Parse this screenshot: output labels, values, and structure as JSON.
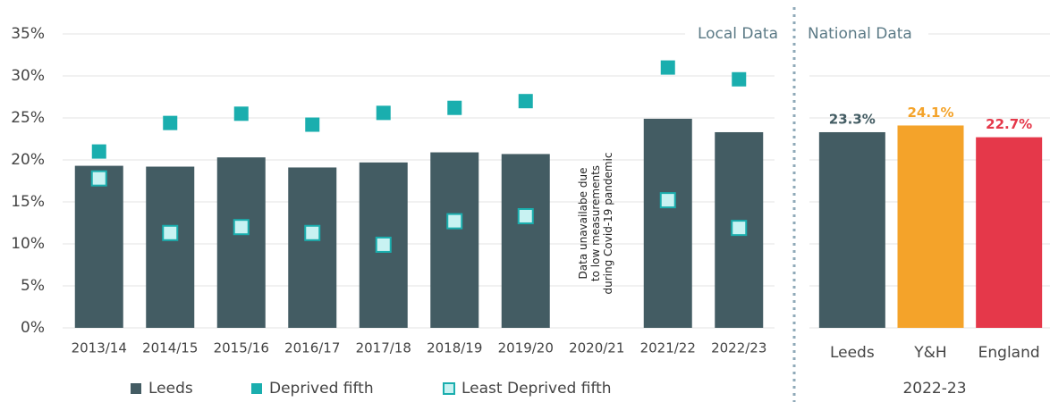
{
  "chart_data": [
    {
      "type": "bar",
      "title": "Local Data",
      "categories": [
        "2013/14",
        "2014/15",
        "2015/16",
        "2016/17",
        "2017/18",
        "2018/19",
        "2019/20",
        "2020/21",
        "2021/22",
        "2022/23"
      ],
      "series": [
        {
          "name": "Leeds",
          "mark": "bar",
          "color": "#435c63",
          "values": [
            19.3,
            19.2,
            20.3,
            19.1,
            19.7,
            20.9,
            20.7,
            null,
            24.9,
            23.3
          ]
        },
        {
          "name": "Deprived fifth",
          "mark": "square",
          "color": "#1aaeae",
          "values": [
            21.0,
            24.4,
            25.5,
            24.2,
            25.6,
            26.2,
            27.0,
            null,
            31.0,
            29.6
          ]
        },
        {
          "name": "Least Deprived fifth",
          "mark": "hollow-square",
          "color": "#1aaeae",
          "values": [
            17.8,
            11.3,
            12.0,
            11.3,
            9.9,
            12.7,
            13.3,
            null,
            15.2,
            11.9
          ]
        }
      ],
      "annotation": [
        "Data unavailabe due",
        "to low measurements",
        "during Covid-19 pandemic"
      ],
      "ylim": [
        0,
        35
      ],
      "yticks": [
        {
          "value": 0,
          "label": "0%"
        },
        {
          "value": 5,
          "label": "5%"
        },
        {
          "value": 10,
          "label": "10%"
        },
        {
          "value": 15,
          "label": "15%"
        },
        {
          "value": 20,
          "label": "20%"
        },
        {
          "value": 25,
          "label": "25%"
        },
        {
          "value": 30,
          "label": "30%"
        },
        {
          "value": 35,
          "label": "35%"
        }
      ],
      "grid": true
    },
    {
      "type": "bar",
      "title": "National Data",
      "x_label": "2022-23",
      "categories": [
        "Leeds",
        "Y&H",
        "England"
      ],
      "values": [
        23.3,
        24.1,
        22.7
      ],
      "value_labels": [
        "23.3%",
        "24.1%",
        "22.7%"
      ],
      "colors": [
        "#435c63",
        "#f4a32a",
        "#e5384a"
      ],
      "ylim": [
        0,
        35
      ],
      "yticks": [
        0,
        5,
        10,
        15,
        20,
        25,
        30,
        35
      ],
      "grid": true
    }
  ]
}
